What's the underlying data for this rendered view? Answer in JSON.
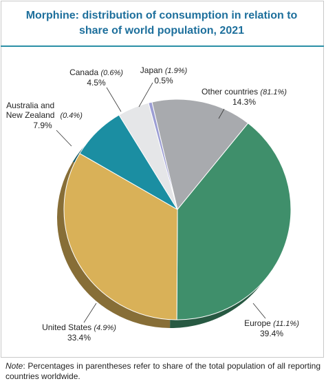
{
  "chart_data": {
    "type": "pie",
    "title": "Morphine: distribution of consumption in relation to share of world population, 2021",
    "categories": [
      "Other countries",
      "Europe",
      "United States",
      "Australia and New Zealand",
      "Canada",
      "Japan"
    ],
    "values": [
      14.3,
      39.4,
      33.4,
      7.9,
      4.5,
      0.5
    ],
    "value_labels": [
      "14.3%",
      "39.4%",
      "33.4%",
      "7.9%",
      "4.5%",
      "0.5%"
    ],
    "population_share_labels": [
      "(81.1%)",
      "(11.1%)",
      "(4.9%)",
      "(0.4%)",
      "(0.6%)",
      "(1.9%)"
    ],
    "colors": [
      "#a8aaae",
      "#3f8f6b",
      "#d9b158",
      "#1b8ea2",
      "#e5e6e8",
      "#9c9ed4"
    ]
  },
  "note": {
    "label": "Note",
    "text": ": Percentages in parentheses refer to share of the total population of all reporting countries worldwide."
  }
}
